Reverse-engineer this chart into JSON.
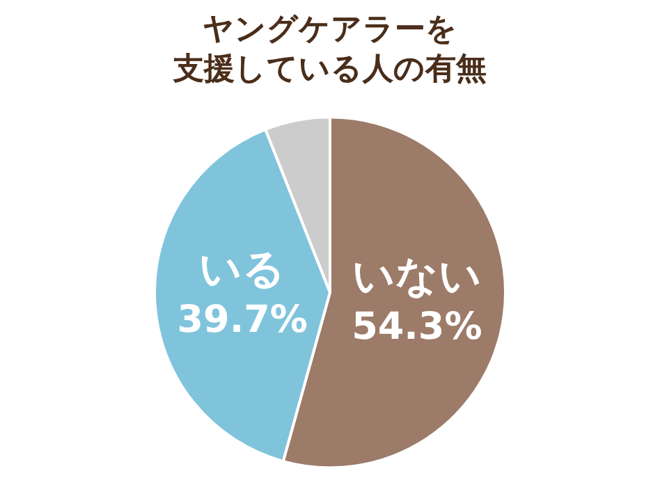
{
  "chart_data": {
    "type": "pie",
    "title": "ヤングケアラーを支援している人の有無",
    "categories": [
      "いない",
      "いる",
      null
    ],
    "values": [
      54.3,
      39.7,
      6.0
    ],
    "colors": [
      "#9c7b68",
      "#80c4dc",
      "#cccccc"
    ],
    "value_labels": [
      "54.3%",
      "39.7%",
      null
    ],
    "legend": false
  }
}
